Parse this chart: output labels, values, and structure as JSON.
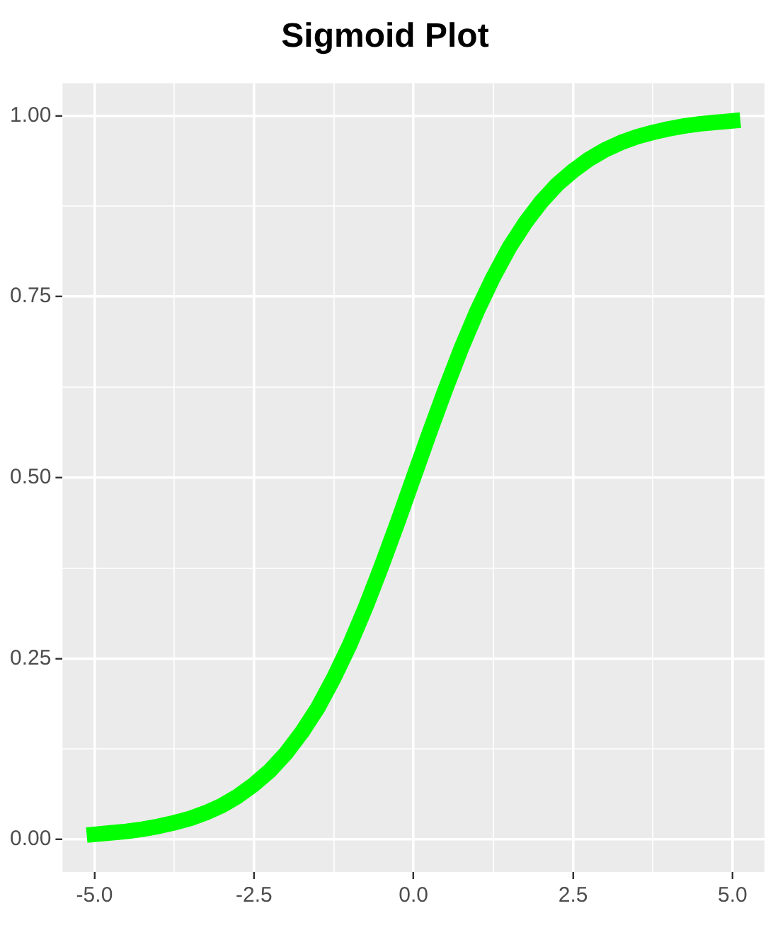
{
  "chart_data": {
    "type": "line",
    "title": "Sigmoid Plot",
    "color": "#00ff00",
    "grid": true,
    "legend": false,
    "marker": "none",
    "line_style": "solid",
    "x": [
      -5,
      -4.75,
      -4.5,
      -4.25,
      -4,
      -3.75,
      -3.5,
      -3.25,
      -3,
      -2.75,
      -2.5,
      -2.25,
      -2,
      -1.75,
      -1.5,
      -1.25,
      -1,
      -0.75,
      -0.5,
      -0.25,
      0,
      0.25,
      0.5,
      0.75,
      1,
      1.25,
      1.5,
      1.75,
      2,
      2.25,
      2.5,
      2.75,
      3,
      3.25,
      3.5,
      3.75,
      4,
      4.25,
      4.5,
      4.75,
      5
    ],
    "values": [
      0.007,
      0.009,
      0.011,
      0.014,
      0.018,
      0.023,
      0.029,
      0.037,
      0.047,
      0.06,
      0.076,
      0.095,
      0.119,
      0.148,
      0.182,
      0.223,
      0.269,
      0.321,
      0.378,
      0.438,
      0.5,
      0.562,
      0.622,
      0.679,
      0.731,
      0.777,
      0.818,
      0.852,
      0.881,
      0.905,
      0.924,
      0.94,
      0.953,
      0.963,
      0.971,
      0.977,
      0.982,
      0.986,
      0.989,
      0.991,
      0.993
    ],
    "xlim": [
      -5.5,
      5.5
    ],
    "xticks": [
      {
        "value": -5,
        "label": "-5.0"
      },
      {
        "value": -3.75,
        "label": null
      },
      {
        "value": -2.5,
        "label": "-2.5"
      },
      {
        "value": -1.25,
        "label": null
      },
      {
        "value": 0,
        "label": "0.0"
      },
      {
        "value": 1.25,
        "label": null
      },
      {
        "value": 2.5,
        "label": "2.5"
      },
      {
        "value": 3.75,
        "label": null
      },
      {
        "value": 5,
        "label": "5.0"
      }
    ],
    "ylim": [
      -0.045,
      1.045
    ],
    "yticks": [
      {
        "value": 0,
        "label": "0.00"
      },
      {
        "value": 0.125,
        "label": null
      },
      {
        "value": 0.25,
        "label": "0.25"
      },
      {
        "value": 0.375,
        "label": null
      },
      {
        "value": 0.5,
        "label": "0.50"
      },
      {
        "value": 0.625,
        "label": null
      },
      {
        "value": 0.75,
        "label": "0.75"
      },
      {
        "value": 0.875,
        "label": null
      },
      {
        "value": 1,
        "label": "1.00"
      }
    ]
  }
}
